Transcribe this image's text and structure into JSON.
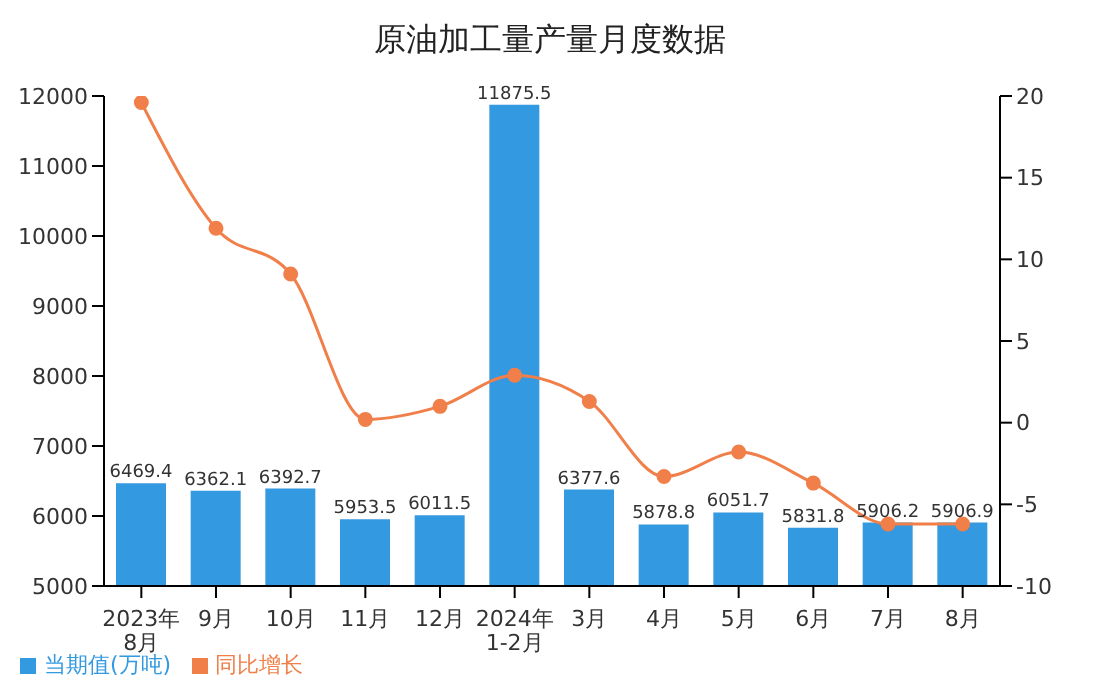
{
  "chart_data": {
    "type": "bar",
    "title": "原油加工量产量月度数据",
    "categories": [
      "2023年\n8月",
      "9月",
      "10月",
      "11月",
      "12月",
      "2024年\n1-2月",
      "3月",
      "4月",
      "5月",
      "6月",
      "7月",
      "8月"
    ],
    "series": [
      {
        "name": "当期值(万吨)",
        "color": "#3399e0",
        "values": [
          6469.4,
          6362.1,
          6392.7,
          5953.5,
          6011.5,
          11875.5,
          6377.6,
          5878.8,
          6051.7,
          5831.8,
          5906.2,
          5906.9
        ],
        "data_labels": true
      },
      {
        "name": "同比增长",
        "type": "line",
        "axis": "y2",
        "color": "#f07f4a",
        "values": [
          19.6,
          11.9,
          9.1,
          0.2,
          1.0,
          2.9,
          1.3,
          -3.3,
          -1.8,
          -3.7,
          -6.2,
          -6.2
        ]
      }
    ],
    "ylim": [
      5000,
      12000
    ],
    "yticks": [
      5000,
      6000,
      7000,
      8000,
      9000,
      10000,
      11000,
      12000
    ],
    "y2lim": [
      -10,
      20
    ],
    "y2ticks": [
      -10,
      -5,
      0,
      5,
      10,
      15,
      20
    ],
    "grid": false,
    "legend": "bottom left",
    "marker": "circle",
    "line_style": "solid"
  }
}
